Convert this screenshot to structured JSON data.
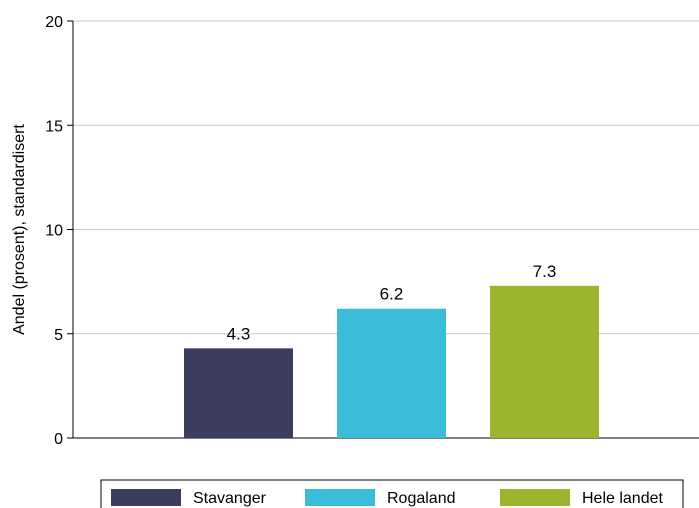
{
  "chart_data": {
    "type": "bar",
    "categories": [
      "Stavanger",
      "Rogaland",
      "Hele landet"
    ],
    "values": [
      4.3,
      6.2,
      7.3
    ],
    "value_labels": [
      "4.3",
      "6.2",
      "7.3"
    ],
    "colors": [
      "#3b3c60",
      "#3bbcd9",
      "#9bb52c"
    ],
    "title": "",
    "xlabel": "",
    "ylabel": "Andel (prosent), standardisert",
    "ylim": [
      0,
      20
    ],
    "yticks": [
      0,
      5,
      10,
      15,
      20
    ],
    "grid": true,
    "grid_color": "#c8c8c8",
    "legend": {
      "position": "bottom",
      "entries": [
        "Stavanger",
        "Rogaland",
        "Hele landet"
      ]
    }
  }
}
